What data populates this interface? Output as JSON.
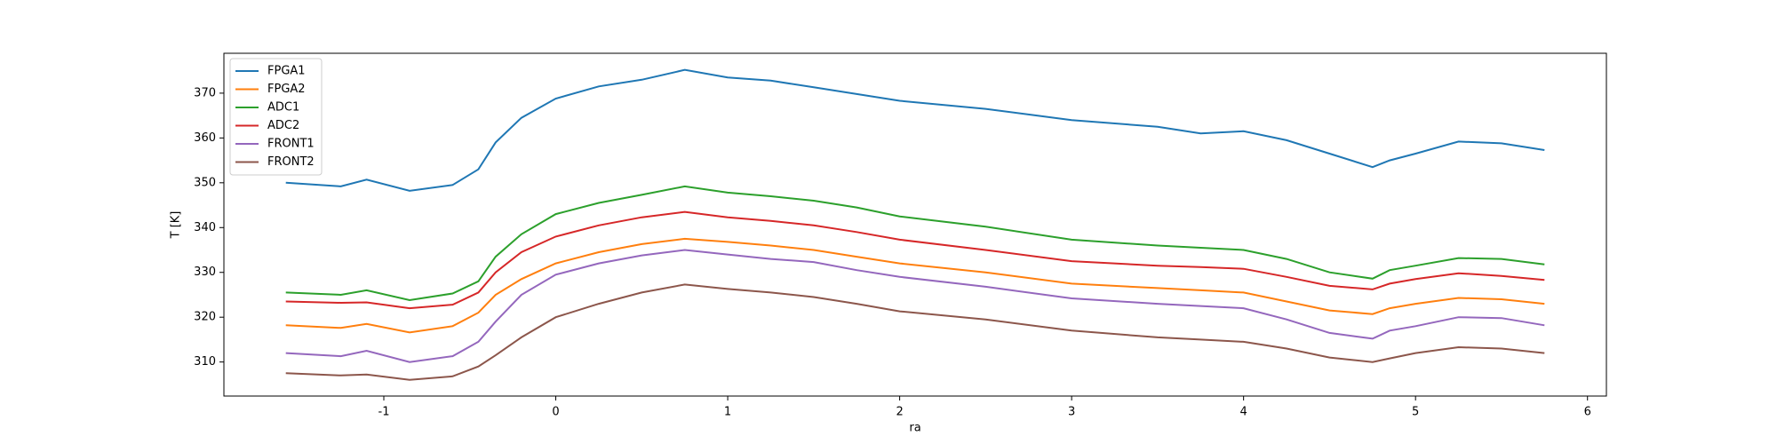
{
  "chart_data": {
    "type": "line",
    "xlabel": "ra",
    "ylabel": "T [K]",
    "x": [
      -1.57,
      -1.25,
      -1.1,
      -0.85,
      -0.6,
      -0.45,
      -0.35,
      -0.2,
      0,
      0.25,
      0.5,
      0.75,
      1.0,
      1.25,
      1.5,
      1.75,
      2.0,
      2.5,
      3.0,
      3.5,
      3.75,
      4.0,
      4.25,
      4.5,
      4.75,
      4.85,
      5.0,
      5.25,
      5.5,
      5.75
    ],
    "series": [
      {
        "name": "FPGA1",
        "color": "#1f77b4",
        "values": [
          350,
          349.2,
          350.7,
          348.2,
          349.5,
          353,
          359,
          364.5,
          368.8,
          371.5,
          373,
          375.2,
          373.5,
          372.8,
          371.3,
          369.8,
          368.3,
          366.5,
          364,
          362.5,
          361,
          361.5,
          359.5,
          356.5,
          353.5,
          355,
          356.5,
          359.2,
          358.8,
          357.3
        ]
      },
      {
        "name": "FPGA2",
        "color": "#ff7f0e",
        "values": [
          318.2,
          317.6,
          318.5,
          316.6,
          318,
          321,
          325,
          328.5,
          332,
          334.5,
          336.3,
          337.5,
          336.8,
          336,
          335,
          333.5,
          332,
          330,
          327.5,
          326.5,
          326,
          325.5,
          323.5,
          321.5,
          320.7,
          322,
          323,
          324.3,
          324,
          323
        ]
      },
      {
        "name": "ADC1",
        "color": "#2ca02c",
        "values": [
          325.5,
          325,
          326,
          323.8,
          325.3,
          328,
          333.5,
          338.5,
          343,
          345.5,
          347.3,
          349.2,
          347.8,
          347,
          346,
          344.5,
          342.5,
          340.2,
          337.3,
          336,
          335.5,
          335,
          333,
          330,
          328.6,
          330.5,
          331.5,
          333.2,
          333,
          331.8
        ]
      },
      {
        "name": "ADC2",
        "color": "#d62728",
        "values": [
          323.5,
          323.2,
          323.3,
          322,
          322.8,
          325.5,
          330,
          334.5,
          338,
          340.5,
          342.3,
          343.5,
          342.3,
          341.5,
          340.5,
          339,
          337.3,
          335,
          332.5,
          331.5,
          331.2,
          330.8,
          329,
          327,
          326.2,
          327.5,
          328.5,
          329.8,
          329.2,
          328.3
        ]
      },
      {
        "name": "FRONT1",
        "color": "#9467bd",
        "values": [
          312,
          311.3,
          312.5,
          310,
          311.3,
          314.5,
          319,
          325,
          329.5,
          332,
          333.8,
          335,
          334,
          333,
          332.3,
          330.5,
          329,
          326.8,
          324.2,
          323,
          322.5,
          322,
          319.5,
          316.5,
          315.2,
          317,
          318,
          320,
          319.8,
          318.2
        ]
      },
      {
        "name": "FRONT2",
        "color": "#8c564b",
        "values": [
          307.5,
          307,
          307.2,
          306,
          306.8,
          309,
          311.5,
          315.5,
          320,
          323,
          325.5,
          327.3,
          326.3,
          325.5,
          324.5,
          323,
          321.3,
          319.5,
          317,
          315.5,
          315,
          314.5,
          313,
          311,
          310,
          310.8,
          312,
          313.3,
          313,
          312
        ]
      }
    ],
    "xlim": [
      -1.93,
      6.11
    ],
    "xticks": [
      -1,
      0,
      1,
      2,
      3,
      4,
      5,
      6
    ],
    "ylim": [
      302.4,
      378.9
    ],
    "yticks": [
      310,
      320,
      330,
      340,
      350,
      360,
      370
    ],
    "grid": false,
    "legend": "upper left"
  }
}
